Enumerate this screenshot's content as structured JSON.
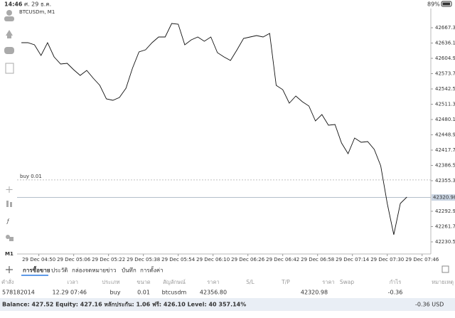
{
  "status": {
    "time": "14:46",
    "date": "ศ. 29 ธ.ค.",
    "battery": "89%"
  },
  "toolbar": {
    "timeframe": "M1"
  },
  "chart_data": {
    "type": "line",
    "title": "BTCUSDm, M1",
    "color": "#111111",
    "grid": false,
    "x": [
      "29 Dec 04:42",
      "29 Dec 04:45",
      "29 Dec 04:48",
      "29 Dec 04:51",
      "29 Dec 04:54",
      "29 Dec 04:57",
      "29 Dec 05:00",
      "29 Dec 05:03",
      "29 Dec 05:06",
      "29 Dec 05:09",
      "29 Dec 05:12",
      "29 Dec 05:15",
      "29 Dec 05:18",
      "29 Dec 05:21",
      "29 Dec 05:24",
      "29 Dec 05:27",
      "29 Dec 05:30",
      "29 Dec 05:33",
      "29 Dec 05:36",
      "29 Dec 05:39",
      "29 Dec 05:42",
      "29 Dec 05:45",
      "29 Dec 05:48",
      "29 Dec 05:51",
      "29 Dec 05:54",
      "29 Dec 05:57",
      "29 Dec 06:00",
      "29 Dec 06:03",
      "29 Dec 06:06",
      "29 Dec 06:09",
      "29 Dec 06:12",
      "29 Dec 06:15",
      "29 Dec 06:18",
      "29 Dec 06:21",
      "29 Dec 06:24",
      "29 Dec 06:27",
      "29 Dec 06:30",
      "29 Dec 06:33",
      "29 Dec 06:36",
      "29 Dec 06:39",
      "29 Dec 06:42",
      "29 Dec 06:45",
      "29 Dec 06:48",
      "29 Dec 06:51",
      "29 Dec 06:54",
      "29 Dec 06:57",
      "29 Dec 07:00",
      "29 Dec 07:03",
      "29 Dec 07:06",
      "29 Dec 07:09",
      "29 Dec 07:12",
      "29 Dec 07:15",
      "29 Dec 07:18",
      "29 Dec 07:21",
      "29 Dec 07:24",
      "29 Dec 07:27",
      "29 Dec 07:30",
      "29 Dec 07:33",
      "29 Dec 07:36",
      "29 Dec 07:39"
    ],
    "values": [
      42636.8,
      42636.8,
      42632.5,
      42610.7,
      42636.8,
      42607.8,
      42593.3,
      42594.7,
      42581.7,
      42570.1,
      42580.2,
      42564.3,
      42549.8,
      42522.2,
      42519.3,
      42525.1,
      42544.0,
      42584.6,
      42618.0,
      42622.3,
      42636.8,
      42648.4,
      42648.4,
      42676.0,
      42674.6,
      42632.5,
      42642.6,
      42648.4,
      42639.7,
      42648.4,
      42616.5,
      42607.8,
      42600.6,
      42622.3,
      42645.5,
      42648.4,
      42651.3,
      42648.4,
      42655.7,
      42549.8,
      42541.1,
      42513.5,
      42528.0,
      42516.4,
      42507.7,
      42477.2,
      42490.3,
      42468.5,
      42470.0,
      42432.2,
      42410.5,
      42442.4,
      42433.7,
      42435.1,
      42419.2,
      42385.8,
      42308.9,
      42245.1,
      42308.9,
      42321.9
    ],
    "xlim": [
      "29 Dec 04:40",
      "29 Dec 07:50"
    ],
    "xticks": [
      "29 Dec 04:50",
      "29 Dec 05:06",
      "29 Dec 05:22",
      "29 Dec 05:38",
      "29 Dec 05:54",
      "29 Dec 06:10",
      "29 Dec 06:26",
      "29 Dec 06:42",
      "29 Dec 06:58",
      "29 Dec 07:14",
      "29 Dec 07:30",
      "29 Dec 07:46"
    ],
    "ylim": [
      42205.8,
      42706.5
    ],
    "yticks": [
      {
        "value": 42667.3,
        "label": "42667.30"
      },
      {
        "value": 42636.1,
        "label": "42636.10"
      },
      {
        "value": 42604.9,
        "label": "42604.90"
      },
      {
        "value": 42573.7,
        "label": "42573.70"
      },
      {
        "value": 42542.5,
        "label": "42542.50"
      },
      {
        "value": 42511.3,
        "label": "42511.30"
      },
      {
        "value": 42480.1,
        "label": "42480.10"
      },
      {
        "value": 42448.9,
        "label": "42448.90"
      },
      {
        "value": 42417.7,
        "label": "42417.70"
      },
      {
        "value": 42386.5,
        "label": "42386.50"
      },
      {
        "value": 42355.3,
        "label": "42355.30"
      },
      {
        "value": 42292.9,
        "label": "42292.90"
      },
      {
        "value": 42261.7,
        "label": "42261.70"
      },
      {
        "value": 42230.5,
        "label": "42230.50"
      }
    ],
    "current_price": 42320.98,
    "buy_line": {
      "label": "buy 0.01",
      "value": 42356.8
    }
  },
  "tabs": [
    "การซื้อขาย",
    "ประวัติ",
    "กล่องจดหมาย",
    "ข่าว",
    "บันทึก",
    "การตั้งค่า"
  ],
  "table": {
    "headers": [
      "คำสั่ง",
      "เวลา",
      "ประเภท",
      "ขนาด",
      "สัญลักษณ์",
      "ราคา",
      "S/L",
      "T/P",
      "ราคา",
      "Swap",
      "กำไร",
      "หมายเหตุ"
    ],
    "rows": [
      {
        "order": "578182014",
        "time": "12.29 07:46",
        "type": "buy",
        "volume": "0.01",
        "symbol": "btcusdm",
        "open_price": "42356.80",
        "price": "42320.98",
        "profit": "-0.36"
      }
    ]
  },
  "footer": {
    "summary": "Balance: 427.52 Equity: 427.16 หลักประกัน: 1.06 ฟรี: 426.10 Level: 40 357.14%",
    "profit": "-0.36 USD"
  }
}
